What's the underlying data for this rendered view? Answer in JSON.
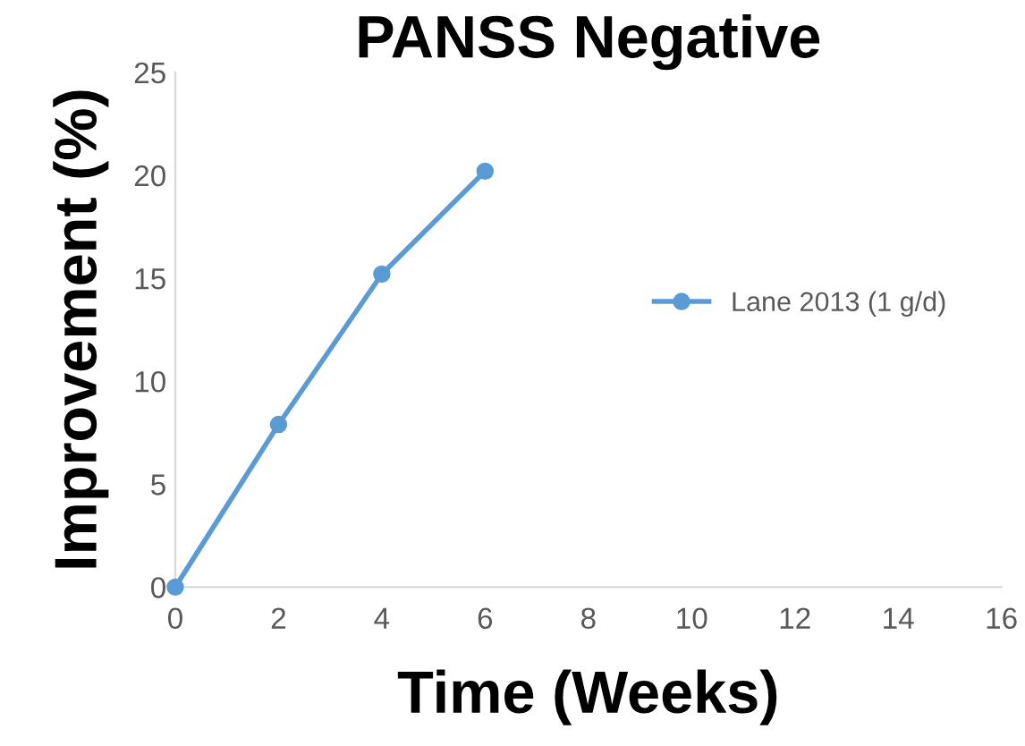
{
  "chart_data": {
    "type": "line",
    "title": "PANSS Negative",
    "xlabel": "Time (Weeks)",
    "ylabel": "Improvement (%)",
    "x": [
      0,
      2,
      4,
      6
    ],
    "series": [
      {
        "name": "Lane 2013 (1 g/d)",
        "color": "#5b9bd5",
        "values": [
          0,
          7.9,
          15.2,
          20.2
        ]
      }
    ],
    "xlim": [
      0,
      16
    ],
    "xticks": [
      0,
      2,
      4,
      6,
      8,
      10,
      12,
      14,
      16
    ],
    "ylim": [
      0,
      25
    ],
    "yticks": [
      0,
      5,
      10,
      15,
      20,
      25
    ],
    "grid": false,
    "legend": "right",
    "marker": "circle",
    "line_style": "solid"
  }
}
